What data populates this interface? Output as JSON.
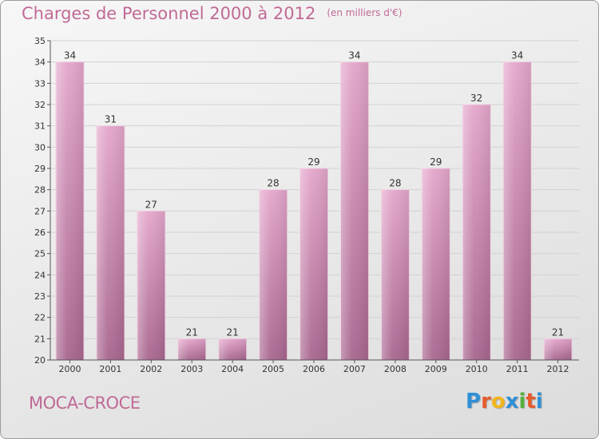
{
  "header": {
    "title": "Charges de Personnel 2000 à 2012",
    "subtitle": "(en milliers d'€)"
  },
  "footer": {
    "town": "MOCA-CROCE",
    "logo_letters": [
      "P",
      "r",
      "o",
      "x",
      "i",
      "t",
      "i"
    ]
  },
  "colors": {
    "title": "#c06a96",
    "bar_top": "#e4a6cb",
    "bar_bottom": "#a8668f",
    "logo": [
      "#2f8fd6",
      "#e65a2c",
      "#f2b51c",
      "#2f8fd6",
      "#55b13d",
      "#e65a2c",
      "#2f8fd6"
    ]
  },
  "chart_data": {
    "type": "bar",
    "title": "Charges de Personnel 2000 à 2012",
    "subtitle": "(en milliers d'€)",
    "categories": [
      "2000",
      "2001",
      "2002",
      "2003",
      "2004",
      "2005",
      "2006",
      "2007",
      "2008",
      "2009",
      "2010",
      "2011",
      "2012"
    ],
    "values": [
      34,
      31,
      27,
      21,
      21,
      28,
      29,
      34,
      28,
      29,
      32,
      34,
      21
    ],
    "ylim": [
      20,
      35
    ],
    "yticks": [
      20,
      21,
      22,
      23,
      24,
      25,
      26,
      27,
      28,
      29,
      30,
      31,
      32,
      33,
      34,
      35
    ],
    "grid": true,
    "xlabel": "",
    "ylabel": ""
  }
}
